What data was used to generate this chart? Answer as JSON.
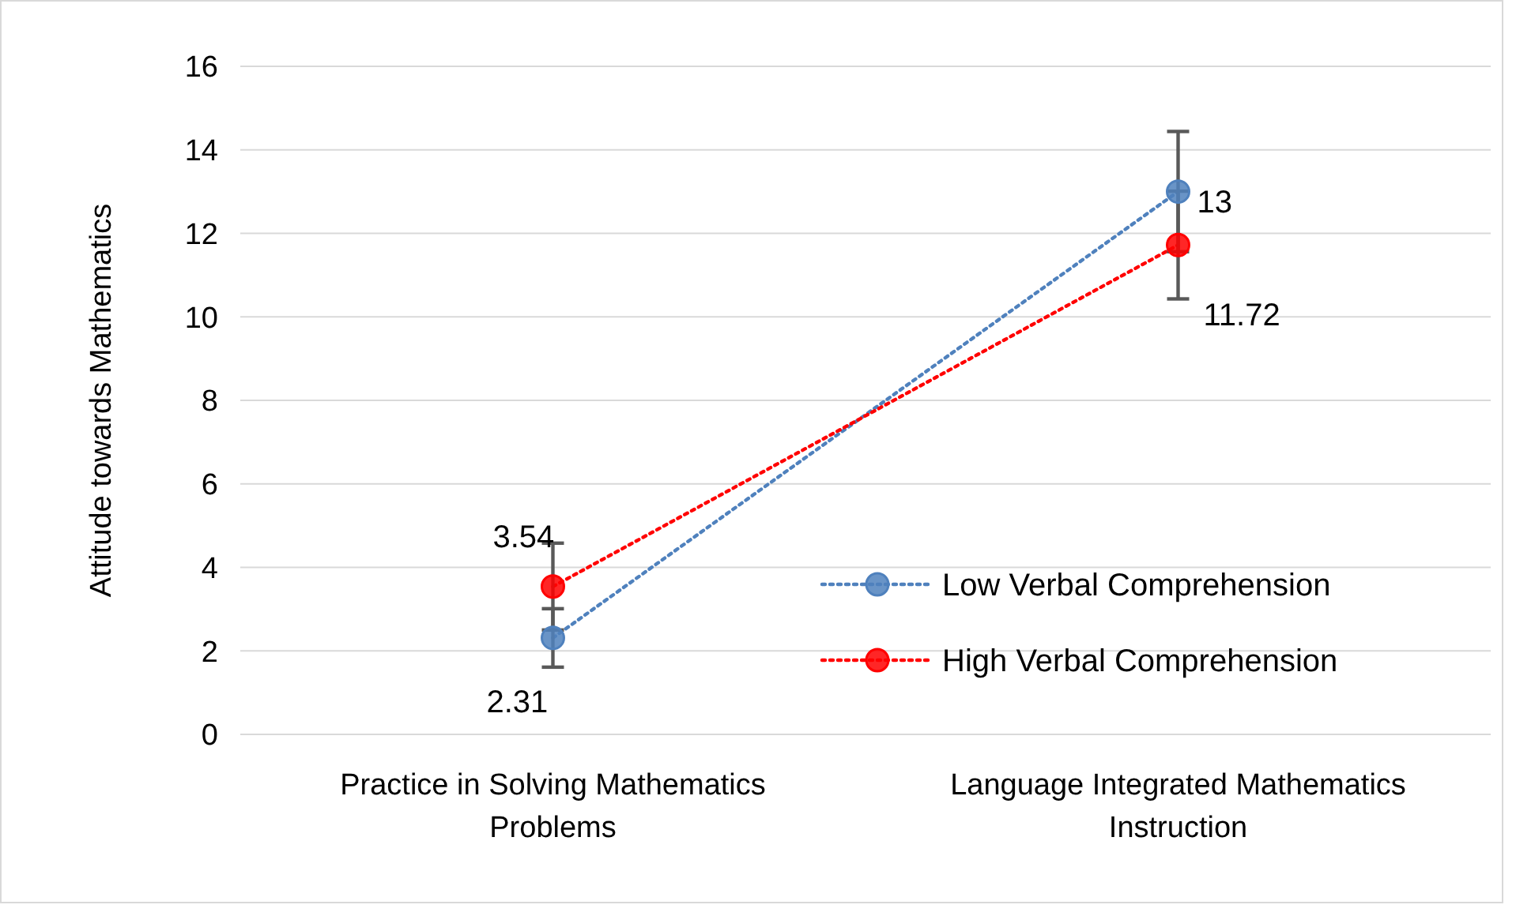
{
  "chart_data": {
    "type": "line",
    "ylabel": "Attitude towards Mathematics",
    "categories": [
      "Practice in Solving Mathematics Problems",
      "Language Integrated Mathematics Instruction"
    ],
    "series": [
      {
        "name": "Low Verbal Comprehension",
        "color": "#4f81bd",
        "values": [
          2.31,
          13
        ],
        "errors": [
          0.7,
          1.44
        ]
      },
      {
        "name": "High Verbal Comprehension",
        "color": "#ff0000",
        "values": [
          3.54,
          11.72
        ],
        "errors": [
          1.04,
          1.29
        ]
      }
    ],
    "ylim": [
      0,
      16
    ],
    "yticks": [
      0,
      2,
      4,
      6,
      8,
      10,
      12,
      14,
      16
    ],
    "grid": "y",
    "legend": "bottom right",
    "marker": "circle",
    "line_style": "dotted",
    "data_labels": true
  }
}
